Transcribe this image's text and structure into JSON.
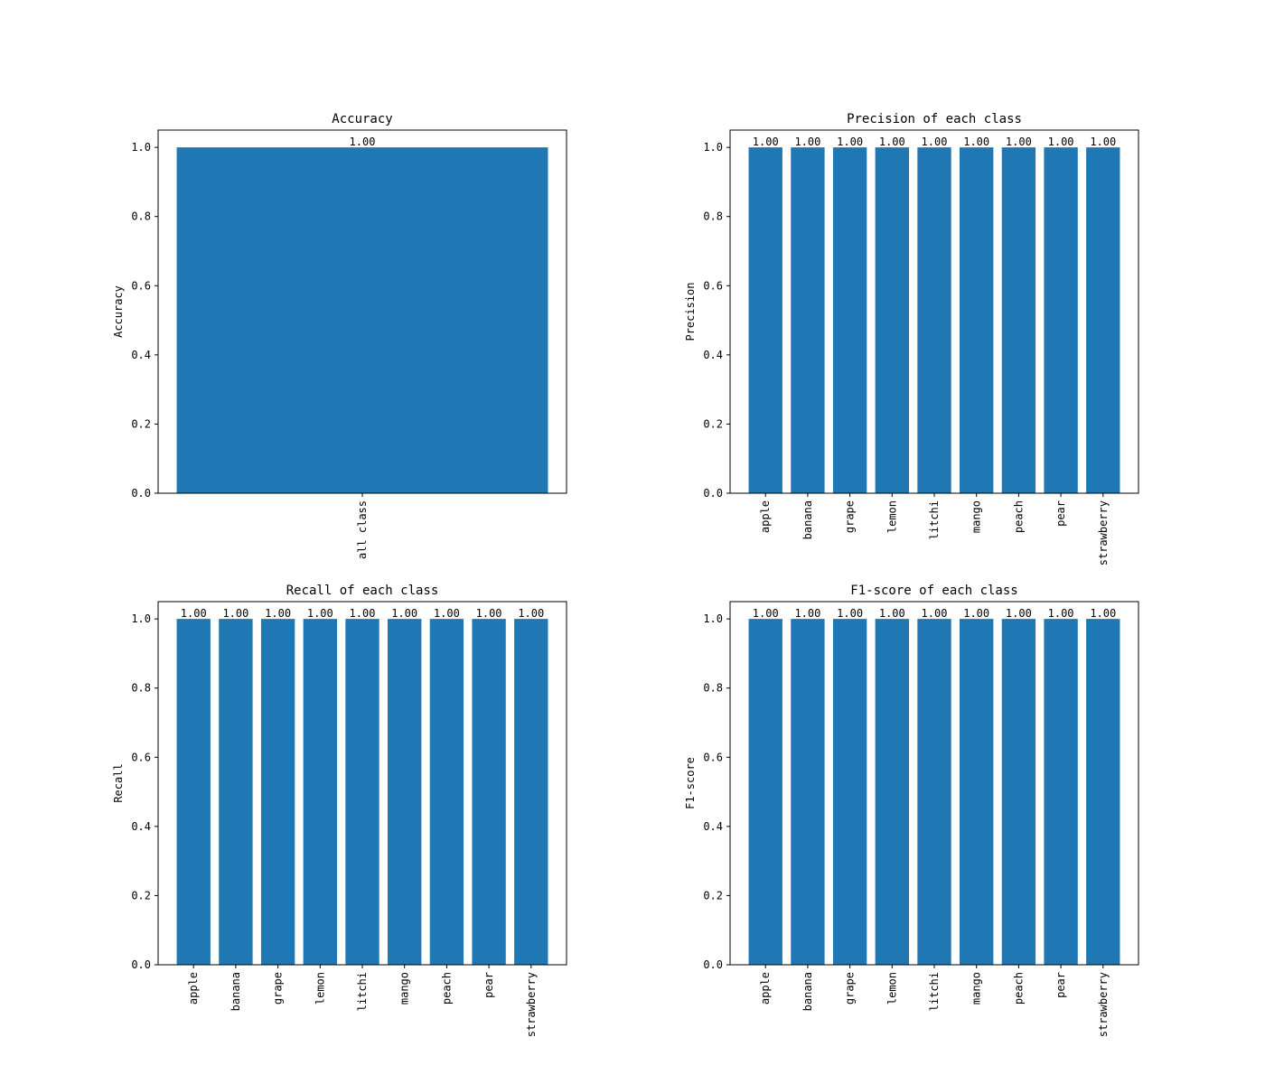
{
  "chart_data": [
    {
      "type": "bar",
      "title": "Accuracy",
      "ylabel": "Accuracy",
      "categories": [
        "all class"
      ],
      "values": [
        1.0
      ],
      "value_labels": [
        "1.00"
      ],
      "color": "#1f77b4",
      "ylim": [
        0,
        1.05
      ],
      "yticks": [
        {
          "value": 0,
          "label": "0.0"
        },
        {
          "value": 0.2,
          "label": "0.2"
        },
        {
          "value": 0.4,
          "label": "0.4"
        },
        {
          "value": 0.6,
          "label": "0.6"
        },
        {
          "value": 0.8,
          "label": "0.8"
        },
        {
          "value": 1,
          "label": "1.0"
        }
      ]
    },
    {
      "type": "bar",
      "title": "Precision of each class",
      "ylabel": "Precision",
      "categories": [
        "apple",
        "banana",
        "grape",
        "lemon",
        "litchi",
        "mango",
        "peach",
        "pear",
        "strawberry"
      ],
      "values": [
        1.0,
        1.0,
        1.0,
        1.0,
        1.0,
        1.0,
        1.0,
        1.0,
        1.0
      ],
      "value_labels": [
        "1.00",
        "1.00",
        "1.00",
        "1.00",
        "1.00",
        "1.00",
        "1.00",
        "1.00",
        "1.00"
      ],
      "color": "#1f77b4",
      "ylim": [
        0,
        1.05
      ],
      "yticks": [
        {
          "value": 0,
          "label": "0.0"
        },
        {
          "value": 0.2,
          "label": "0.2"
        },
        {
          "value": 0.4,
          "label": "0.4"
        },
        {
          "value": 0.6,
          "label": "0.6"
        },
        {
          "value": 0.8,
          "label": "0.8"
        },
        {
          "value": 1,
          "label": "1.0"
        }
      ]
    },
    {
      "type": "bar",
      "title": "Recall of each class",
      "ylabel": "Recall",
      "categories": [
        "apple",
        "banana",
        "grape",
        "lemon",
        "litchi",
        "mango",
        "peach",
        "pear",
        "strawberry"
      ],
      "values": [
        1.0,
        1.0,
        1.0,
        1.0,
        1.0,
        1.0,
        1.0,
        1.0,
        1.0
      ],
      "value_labels": [
        "1.00",
        "1.00",
        "1.00",
        "1.00",
        "1.00",
        "1.00",
        "1.00",
        "1.00",
        "1.00"
      ],
      "color": "#1f77b4",
      "ylim": [
        0,
        1.05
      ],
      "yticks": [
        {
          "value": 0,
          "label": "0.0"
        },
        {
          "value": 0.2,
          "label": "0.2"
        },
        {
          "value": 0.4,
          "label": "0.4"
        },
        {
          "value": 0.6,
          "label": "0.6"
        },
        {
          "value": 0.8,
          "label": "0.8"
        },
        {
          "value": 1,
          "label": "1.0"
        }
      ]
    },
    {
      "type": "bar",
      "title": "F1-score of each class",
      "ylabel": "F1-score",
      "categories": [
        "apple",
        "banana",
        "grape",
        "lemon",
        "litchi",
        "mango",
        "peach",
        "pear",
        "strawberry"
      ],
      "values": [
        1.0,
        1.0,
        1.0,
        1.0,
        1.0,
        1.0,
        1.0,
        1.0,
        1.0
      ],
      "value_labels": [
        "1.00",
        "1.00",
        "1.00",
        "1.00",
        "1.00",
        "1.00",
        "1.00",
        "1.00",
        "1.00"
      ],
      "color": "#1f77b4",
      "ylim": [
        0,
        1.05
      ],
      "yticks": [
        {
          "value": 0,
          "label": "0.0"
        },
        {
          "value": 0.2,
          "label": "0.2"
        },
        {
          "value": 0.4,
          "label": "0.4"
        },
        {
          "value": 0.6,
          "label": "0.6"
        },
        {
          "value": 0.8,
          "label": "0.8"
        },
        {
          "value": 1,
          "label": "1.0"
        }
      ]
    }
  ]
}
